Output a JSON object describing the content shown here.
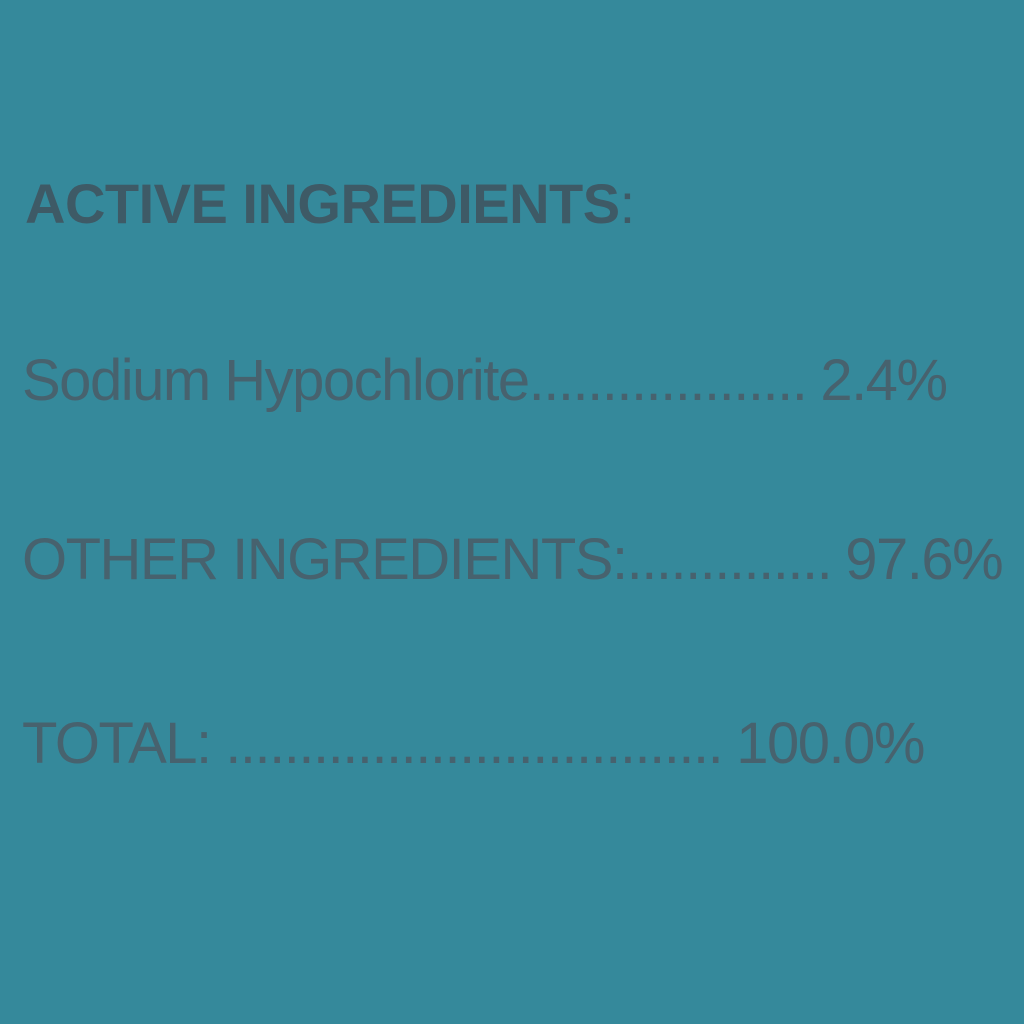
{
  "page": {
    "background_color": "#35899B",
    "text_color": "#47626E",
    "heading_color": "#3E5A66"
  },
  "label": {
    "heading": {
      "text": "ACTIVE INGREDIENTS",
      "colon": ":"
    },
    "rows": [
      {
        "name": "Sodium Hypochlorite",
        "leader": "...................",
        "value": "2.4%"
      },
      {
        "name": "OTHER INGREDIENTS:",
        "leader": "..............",
        "value": "97.6%"
      },
      {
        "name": "TOTAL:",
        "leader": " ..................................",
        "value": "100.0%"
      }
    ]
  }
}
